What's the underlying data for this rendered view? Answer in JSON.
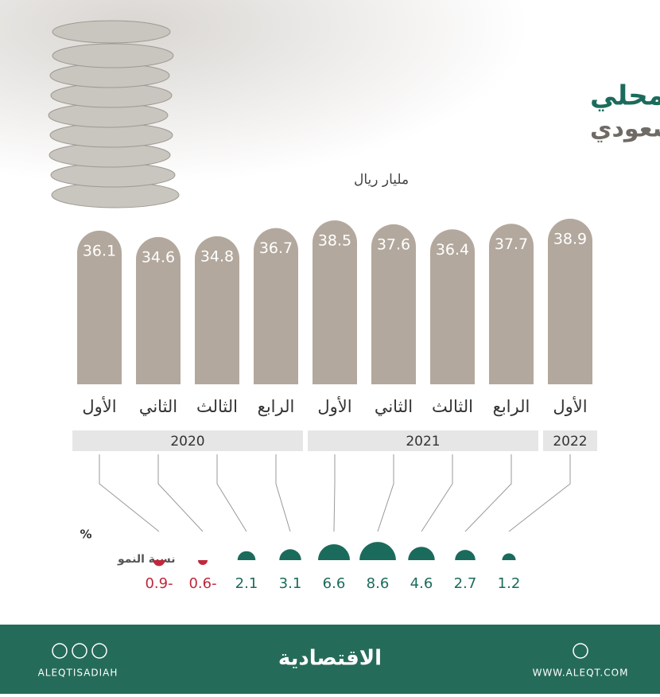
{
  "chart_data": {
    "type": "bar",
    "title": "الناتج المحلي",
    "subtitle": "للقطاع العقاري السعودي",
    "unit_label": "مليار ريال",
    "categories": [
      "الأول",
      "الثاني",
      "الثالث",
      "الرابع",
      "الأول",
      "الثاني",
      "الثالث",
      "الرابع",
      "الأول"
    ],
    "values": [
      36.1,
      34.6,
      34.8,
      36.7,
      38.5,
      37.6,
      36.4,
      37.7,
      38.9
    ],
    "color": "#b3a89d",
    "ylim": [
      0,
      40
    ],
    "groups": [
      {
        "name": "2020",
        "count": 4
      },
      {
        "name": "2021",
        "count": 4
      },
      {
        "name": "2022",
        "count": 1
      }
    ],
    "growth": {
      "label": "نسبة النمو",
      "unit": "%",
      "values": [
        -0.9,
        -0.6,
        2.1,
        3.1,
        6.6,
        8.6,
        4.6,
        2.7,
        1.2
      ],
      "value_labels": [
        "0.9-",
        "0.6-",
        "2.1",
        "3.1",
        "6.6",
        "8.6",
        "4.6",
        "2.7",
        "1.2"
      ],
      "positive_color": "#1b6b5c",
      "negative_color": "#c0283c"
    },
    "footer": {
      "left": "ALEQTISADIAH",
      "center": "الاقتصادية",
      "right": "WWW.ALEQT.COM"
    }
  }
}
